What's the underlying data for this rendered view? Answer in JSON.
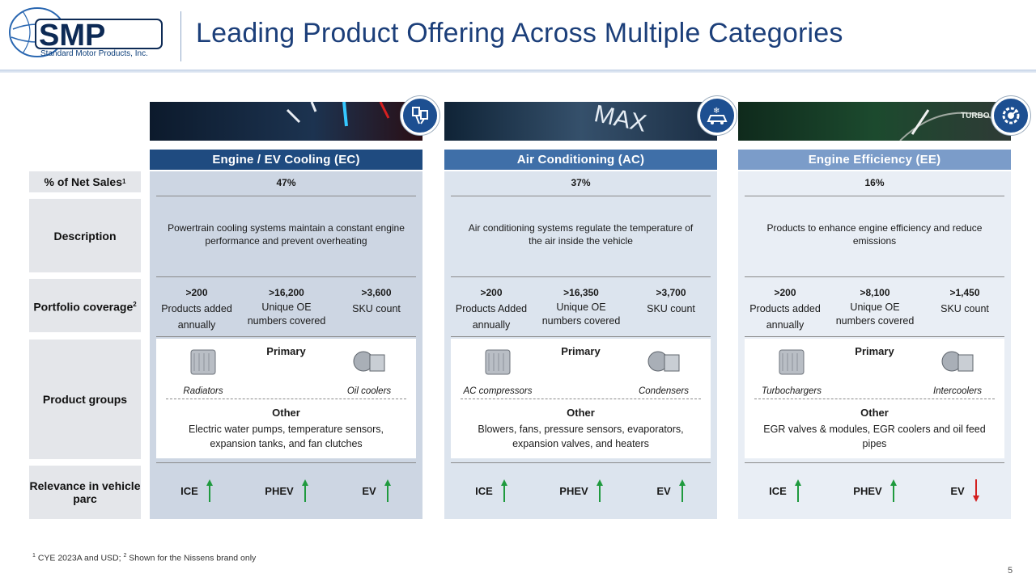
{
  "logo": {
    "text": "SMP",
    "subtitle": "Standard Motor Products, Inc."
  },
  "title": "Leading Product Offering Across Multiple Categories",
  "row_labels": {
    "net_sales": "% of Net Sales",
    "net_sales_sup": "1",
    "description": "Description",
    "portfolio": "Portfolio coverage",
    "portfolio_sup": "2",
    "product_groups": "Product groups",
    "relevance": "Relevance in vehicle parc"
  },
  "colors": {
    "ec": "#1f4b80",
    "ac": "#3f6fa8",
    "ee": "#7b9cc9",
    "ec_body": "#cdd6e3",
    "ac_body": "#dce4ee",
    "ee_body": "#e9eef5",
    "up": "#1f9a3e",
    "down": "#d32020"
  },
  "columns": [
    {
      "header": "Engine  / EV Cooling  (EC)",
      "icon": "engine-pistons-icon",
      "net_sales": "47%",
      "description": "Powertrain  cooling systems maintain a constant engine performance  and prevent  overheating",
      "stats": [
        {
          "value": ">200",
          "label": "Products added annually"
        },
        {
          "value": ">16,200",
          "label": "Unique OE numbers covered"
        },
        {
          "value": ">3,600",
          "label": "SKU count"
        }
      ],
      "primary_label": "Primary",
      "primary": [
        "Radiators",
        "Oil coolers"
      ],
      "other_label": "Other",
      "other": "Electric water  pumps, temperature sensors, expansion tanks, and fan clutches",
      "relevance": [
        {
          "label": "ICE",
          "dir": "up"
        },
        {
          "label": "PHEV",
          "dir": "up"
        },
        {
          "label": "EV",
          "dir": "up"
        }
      ]
    },
    {
      "header": "Air Conditioning  (AC)",
      "icon": "car-ac-icon",
      "net_sales": "37%",
      "description": "Air conditioning systems regulate the temperature of the air inside the vehicle",
      "stats": [
        {
          "value": ">200",
          "label": "Products Added annually"
        },
        {
          "value": ">16,350",
          "label": "Unique OE numbers covered"
        },
        {
          "value": ">3,700",
          "label": "SKU count"
        }
      ],
      "primary_label": "Primary",
      "primary": [
        "AC compressors",
        "Condensers"
      ],
      "other_label": "Other",
      "other": "Blowers, fans, pressure sensors, evaporators, expansion valves,  and heaters",
      "relevance": [
        {
          "label": "ICE",
          "dir": "up"
        },
        {
          "label": "PHEV",
          "dir": "up"
        },
        {
          "label": "EV",
          "dir": "up"
        }
      ]
    },
    {
      "header": "Engine  Efficiency  (EE)",
      "icon": "gear-gauge-icon",
      "net_sales": "16%",
      "description": "Products to enhance engine efficiency and reduce emissions",
      "stats": [
        {
          "value": ">200",
          "label": "Products added annually"
        },
        {
          "value": ">8,100",
          "label": "Unique OE numbers covered"
        },
        {
          "value": ">1,450",
          "label": "SKU count"
        }
      ],
      "primary_label": "Primary",
      "primary": [
        "Turbochargers",
        "Intercoolers"
      ],
      "other_label": "Other",
      "other": "EGR valves  & modules, EGR coolers and oil feed pipes",
      "relevance": [
        {
          "label": "ICE",
          "dir": "up"
        },
        {
          "label": "PHEV",
          "dir": "up"
        },
        {
          "label": "EV",
          "dir": "down"
        }
      ]
    }
  ],
  "image_texts": {
    "ac": "MAX",
    "ee": "TURBO"
  },
  "footnote": {
    "sup1": "1",
    "text1": " CYE 2023A and USD; ",
    "sup2": "2",
    "text2": " Shown for the Nissens brand only"
  },
  "page_number": "5"
}
